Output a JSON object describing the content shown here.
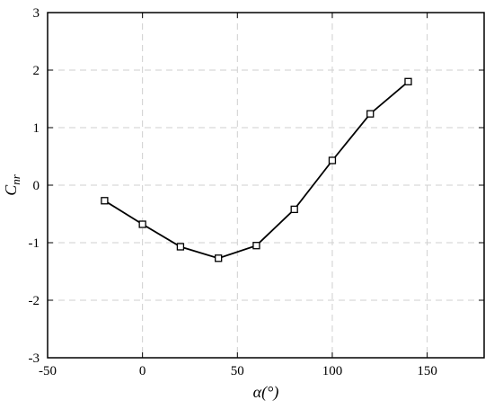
{
  "chart_data": {
    "type": "line",
    "title": "",
    "xlabel": "α(°)",
    "ylabel_main": "C",
    "ylabel_sub": "nr",
    "xlim": [
      -50,
      180
    ],
    "ylim": [
      -3,
      3
    ],
    "xticks": [
      -50,
      0,
      50,
      100,
      150
    ],
    "yticks": [
      -3,
      -2,
      -1,
      0,
      1,
      2,
      3
    ],
    "xtick_labels": [
      "-50",
      "0",
      "50",
      "100",
      "150"
    ],
    "ytick_labels": [
      "-3",
      "-2",
      "-1",
      "0",
      "1",
      "2",
      "3"
    ],
    "grid": true,
    "legend": "none",
    "series": [
      {
        "marker": "square",
        "color": "#000000",
        "x": [
          -20,
          0,
          20,
          40,
          60,
          80,
          100,
          120,
          140
        ],
        "y": [
          -0.27,
          -0.68,
          -1.07,
          -1.27,
          -1.05,
          -0.42,
          0.43,
          1.24,
          1.8
        ]
      }
    ]
  }
}
